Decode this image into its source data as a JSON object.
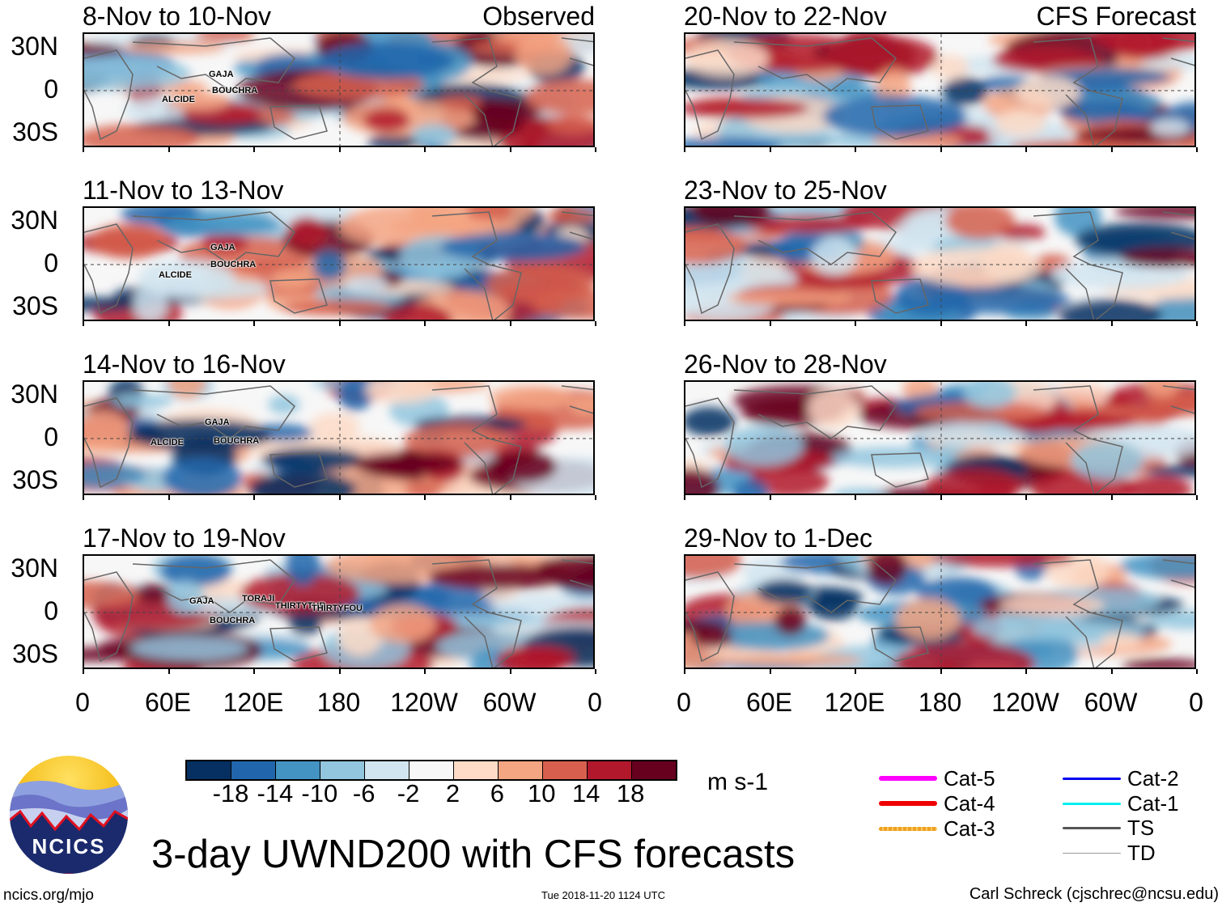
{
  "panels": [
    {
      "title": "8-Nov to 10-Nov",
      "right_title": "Observed",
      "storms": [
        "GAJA",
        "BOUCHRA",
        "ALCIDE"
      ]
    },
    {
      "title": "11-Nov to 13-Nov",
      "storms": [
        "GAJA",
        "BOUCHRA",
        "ALCIDE"
      ]
    },
    {
      "title": "14-Nov to 16-Nov",
      "storms": [
        "GAJA",
        "ALCIDE",
        "BOUCHRA"
      ]
    },
    {
      "title": "17-Nov to 19-Nov",
      "storms": [
        "GAJA",
        "TORAJI",
        "THIRTYTHR",
        "THIRTYFOU",
        "BOUCHRA"
      ]
    },
    {
      "title": "20-Nov to 22-Nov",
      "right_title": "CFS Forecast",
      "storms": []
    },
    {
      "title": "23-Nov to 25-Nov",
      "storms": []
    },
    {
      "title": "26-Nov to 28-Nov",
      "storms": []
    },
    {
      "title": "29-Nov to 1-Dec",
      "storms": []
    }
  ],
  "lat_labels": [
    "30N",
    "0",
    "30S"
  ],
  "lon_labels": [
    "0",
    "60E",
    "120E",
    "180",
    "120W",
    "60W",
    "0"
  ],
  "colorbar": {
    "colors": [
      "#053061",
      "#2166ac",
      "#4393c3",
      "#92c5de",
      "#d1e5f0",
      "#f7f7f7",
      "#fddbc7",
      "#f4a582",
      "#d6604d",
      "#b2182b",
      "#67001f"
    ],
    "labels": [
      "-18",
      "-14",
      "-10",
      "-6",
      "-2",
      "2",
      "6",
      "10",
      "14",
      "18"
    ],
    "units": "m s-1"
  },
  "legend": [
    {
      "label": "Cat-5",
      "color": "#ff00ff"
    },
    {
      "label": "Cat-4",
      "color": "#ee0000"
    },
    {
      "label": "Cat-3",
      "color": "#f0a020"
    },
    {
      "label": "Cat-2",
      "color": "#0000ee"
    },
    {
      "label": "Cat-1",
      "color": "#00eeee"
    },
    {
      "label": "TS",
      "color": "#555555"
    },
    {
      "label": "TD",
      "color": "#999999"
    }
  ],
  "title": "3-day UWND200 with CFS forecasts",
  "logo_text": "NCICS",
  "footer": {
    "left": "ncics.org/mjo",
    "center": "Tue 2018-11-20 1124 UTC",
    "right": "Carl Schreck (cjschrec@ncsu.edu)"
  }
}
